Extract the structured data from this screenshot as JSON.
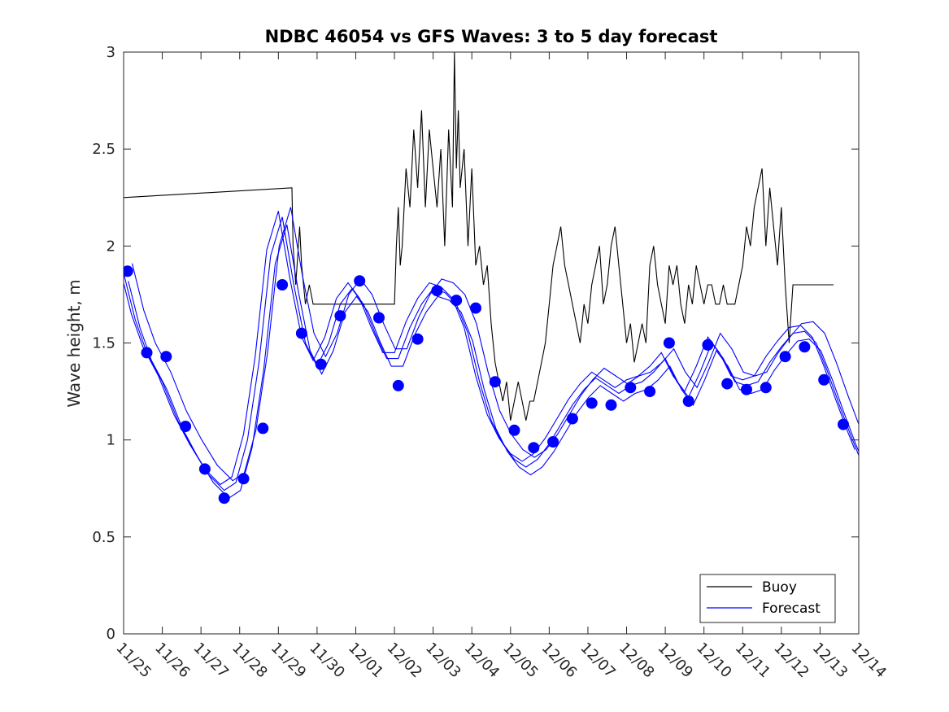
{
  "chart_data": {
    "type": "line",
    "title": "NDBC 46054 vs GFS Waves: 3 to 5 day forecast",
    "xlabel": "",
    "ylabel": "Wave height, m",
    "xlim": [
      0,
      19
    ],
    "ylim": [
      0,
      3
    ],
    "grid": false,
    "x_ticks": [
      0,
      1,
      2,
      3,
      4,
      5,
      6,
      7,
      8,
      9,
      10,
      11,
      12,
      13,
      14,
      15,
      16,
      17,
      18,
      19
    ],
    "x_tick_labels": [
      "11/25",
      "11/26",
      "11/27",
      "11/28",
      "11/29",
      "11/30",
      "12/01",
      "12/02",
      "12/03",
      "12/04",
      "12/05",
      "12/06",
      "12/07",
      "12/08",
      "12/09",
      "12/10",
      "12/11",
      "12/12",
      "12/13",
      "12/14"
    ],
    "y_ticks": [
      0,
      0.5,
      1,
      1.5,
      2,
      2.5,
      3
    ],
    "y_tick_labels": [
      "0",
      "0.5",
      "1",
      "1.5",
      "2",
      "2.5",
      "3"
    ],
    "legend": {
      "position": "bottom-right",
      "entries": [
        "Buoy",
        "Forecast"
      ]
    },
    "colors": {
      "buoy": "#000000",
      "forecast": "#0000ff"
    },
    "series": [
      {
        "name": "Buoy",
        "color": "#000000",
        "x": [
          0.0,
          4.35,
          4.38,
          4.45,
          4.55,
          4.6,
          4.7,
          4.8,
          4.9,
          5.0,
          6.0,
          7.0,
          7.05,
          7.1,
          7.15,
          7.2,
          7.3,
          7.4,
          7.5,
          7.6,
          7.7,
          7.8,
          7.9,
          8.0,
          8.1,
          8.2,
          8.3,
          8.4,
          8.5,
          8.55,
          8.6,
          8.65,
          8.7,
          8.8,
          8.9,
          9.0,
          9.1,
          9.2,
          9.3,
          9.4,
          9.5,
          9.6,
          9.7,
          9.8,
          9.9,
          10.0,
          10.1,
          10.2,
          10.3,
          10.4,
          10.5,
          10.6,
          10.7,
          10.8,
          10.9,
          11.0,
          11.1,
          11.2,
          11.3,
          11.4,
          11.5,
          11.6,
          11.7,
          11.8,
          11.9,
          12.0,
          12.1,
          12.2,
          12.3,
          12.4,
          12.5,
          12.6,
          12.7,
          12.8,
          12.9,
          13.0,
          13.1,
          13.2,
          13.3,
          13.4,
          13.5,
          13.6,
          13.7,
          13.8,
          13.9,
          14.0,
          14.1,
          14.2,
          14.3,
          14.4,
          14.5,
          14.6,
          14.7,
          14.8,
          14.9,
          15.0,
          15.1,
          15.2,
          15.3,
          15.4,
          15.5,
          15.6,
          15.7,
          15.8,
          15.9,
          16.0,
          16.1,
          16.2,
          16.3,
          16.4,
          16.5,
          16.6,
          16.7,
          16.8,
          16.9,
          17.0,
          17.1,
          17.2,
          17.3,
          17.4,
          17.5,
          17.6,
          17.7,
          17.8,
          17.9,
          18.0,
          18.1,
          18.2,
          18.3,
          18.35
        ],
        "values": [
          2.25,
          2.3,
          2.0,
          1.8,
          2.1,
          1.9,
          1.7,
          1.8,
          1.7,
          1.7,
          1.7,
          1.7,
          2.0,
          2.2,
          1.9,
          2.0,
          2.4,
          2.2,
          2.6,
          2.3,
          2.7,
          2.2,
          2.6,
          2.4,
          2.2,
          2.5,
          2.0,
          2.6,
          2.2,
          3.0,
          2.4,
          2.7,
          2.3,
          2.5,
          2.0,
          2.4,
          1.9,
          2.0,
          1.8,
          1.9,
          1.6,
          1.4,
          1.3,
          1.2,
          1.3,
          1.1,
          1.2,
          1.3,
          1.2,
          1.1,
          1.2,
          1.2,
          1.3,
          1.4,
          1.5,
          1.7,
          1.9,
          2.0,
          2.1,
          1.9,
          1.8,
          1.7,
          1.6,
          1.5,
          1.7,
          1.6,
          1.8,
          1.9,
          2.0,
          1.7,
          1.8,
          2.0,
          2.1,
          1.9,
          1.7,
          1.5,
          1.6,
          1.4,
          1.5,
          1.6,
          1.5,
          1.9,
          2.0,
          1.8,
          1.7,
          1.6,
          1.9,
          1.8,
          1.9,
          1.7,
          1.6,
          1.8,
          1.7,
          1.9,
          1.8,
          1.7,
          1.8,
          1.8,
          1.7,
          1.7,
          1.8,
          1.7,
          1.7,
          1.7,
          1.8,
          1.9,
          2.1,
          2.0,
          2.2,
          2.3,
          2.4,
          2.0,
          2.3,
          2.1,
          1.9,
          2.2,
          1.8,
          1.5,
          1.8,
          1.8,
          1.8,
          1.8,
          1.8,
          1.8,
          1.8,
          1.8,
          1.8,
          1.8,
          1.8,
          1.8
        ]
      },
      {
        "name": "Forecast",
        "color": "#0000ff",
        "x": [
          0.0,
          0.3,
          0.6,
          1.0,
          1.4,
          1.8,
          2.2,
          2.6,
          2.9,
          3.2,
          3.5,
          3.8,
          4.1,
          4.4,
          4.7,
          5.0,
          5.3,
          5.6,
          5.9,
          6.2,
          6.5,
          6.8,
          7.1,
          7.4,
          7.7,
          8.0,
          8.3,
          8.6,
          8.9,
          9.2,
          9.5,
          9.8,
          10.1,
          10.4,
          10.7,
          11.0,
          11.3,
          11.6,
          11.9,
          12.2,
          12.5,
          12.8,
          13.1,
          13.4,
          13.7,
          14.0,
          14.3,
          14.6,
          14.9,
          15.2,
          15.5,
          15.8,
          16.1,
          16.4,
          16.7,
          17.0,
          17.3,
          17.6,
          17.9,
          18.2,
          18.5,
          18.8,
          19.0
        ],
        "values": [
          1.86,
          1.62,
          1.45,
          1.3,
          1.1,
          0.95,
          0.82,
          0.74,
          0.78,
          1.0,
          1.4,
          1.95,
          2.15,
          1.8,
          1.5,
          1.38,
          1.5,
          1.7,
          1.78,
          1.7,
          1.55,
          1.42,
          1.42,
          1.58,
          1.7,
          1.78,
          1.76,
          1.7,
          1.55,
          1.3,
          1.1,
          0.98,
          0.9,
          0.86,
          0.9,
          0.98,
          1.08,
          1.18,
          1.26,
          1.32,
          1.28,
          1.24,
          1.28,
          1.3,
          1.35,
          1.42,
          1.3,
          1.22,
          1.35,
          1.5,
          1.42,
          1.3,
          1.28,
          1.3,
          1.4,
          1.48,
          1.55,
          1.56,
          1.5,
          1.35,
          1.18,
          1.02,
          0.92
        ]
      },
      {
        "name": "Forecast markers",
        "color": "#0000ff",
        "x": [
          0.1,
          0.6,
          1.1,
          1.6,
          2.1,
          2.6,
          3.1,
          3.6,
          4.1,
          4.6,
          5.1,
          5.6,
          6.1,
          6.6,
          7.1,
          7.6,
          8.1,
          8.6,
          9.1,
          9.6,
          10.1,
          10.6,
          11.1,
          11.6,
          12.1,
          12.6,
          13.1,
          13.6,
          14.1,
          14.6,
          15.1,
          15.6,
          16.1,
          16.6,
          17.1,
          17.6,
          18.1,
          18.6
        ],
        "values": [
          1.87,
          1.45,
          1.43,
          1.07,
          0.85,
          0.7,
          0.8,
          1.06,
          1.8,
          1.55,
          1.39,
          1.64,
          1.82,
          1.63,
          1.28,
          1.52,
          1.77,
          1.72,
          1.68,
          1.3,
          1.05,
          0.96,
          0.99,
          1.11,
          1.19,
          1.18,
          1.27,
          1.25,
          1.5,
          1.2,
          1.49,
          1.29,
          1.26,
          1.27,
          1.43,
          1.48,
          1.31,
          1.08
        ]
      }
    ]
  }
}
